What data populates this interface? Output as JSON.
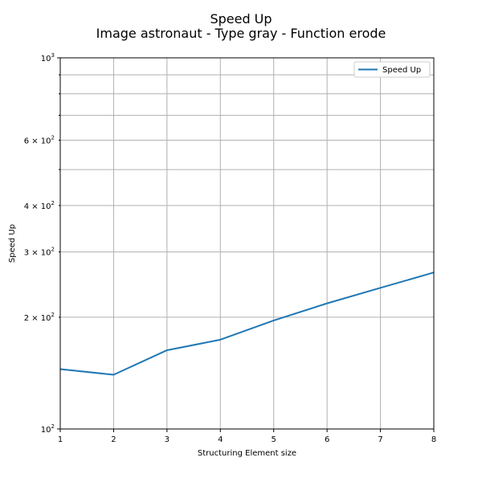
{
  "chart_data": {
    "type": "line",
    "title": "Speed Up",
    "subtitle": "Image astronaut - Type gray - Function erode",
    "xlabel": "Structuring Element size",
    "ylabel": "Speed Up",
    "yscale": "log",
    "xlim": [
      1,
      8
    ],
    "ylim": [
      100,
      1000
    ],
    "x": [
      1,
      2,
      3,
      4,
      5,
      6,
      7,
      8
    ],
    "x_tick_labels": [
      "1",
      "2",
      "3",
      "4",
      "5",
      "6",
      "7",
      "8"
    ],
    "y_tick_labels": [
      {
        "value": 100,
        "base": "10",
        "exp": "2",
        "coef": ""
      },
      {
        "value": 200,
        "base": "10",
        "exp": "2",
        "coef": "2 × "
      },
      {
        "value": 300,
        "base": "10",
        "exp": "2",
        "coef": "3 × "
      },
      {
        "value": 400,
        "base": "10",
        "exp": "2",
        "coef": "4 × "
      },
      {
        "value": 600,
        "base": "10",
        "exp": "2",
        "coef": "6 × "
      },
      {
        "value": 1000,
        "base": "10",
        "exp": "3",
        "coef": ""
      }
    ],
    "y_minor_gridlines": [
      500,
      700,
      800,
      900
    ],
    "grid": true,
    "legend_position": "top-right",
    "series": [
      {
        "name": "Speed Up",
        "color": "#1f77b4",
        "values": [
          145,
          140,
          163,
          174,
          196,
          218,
          240,
          264
        ]
      }
    ]
  }
}
